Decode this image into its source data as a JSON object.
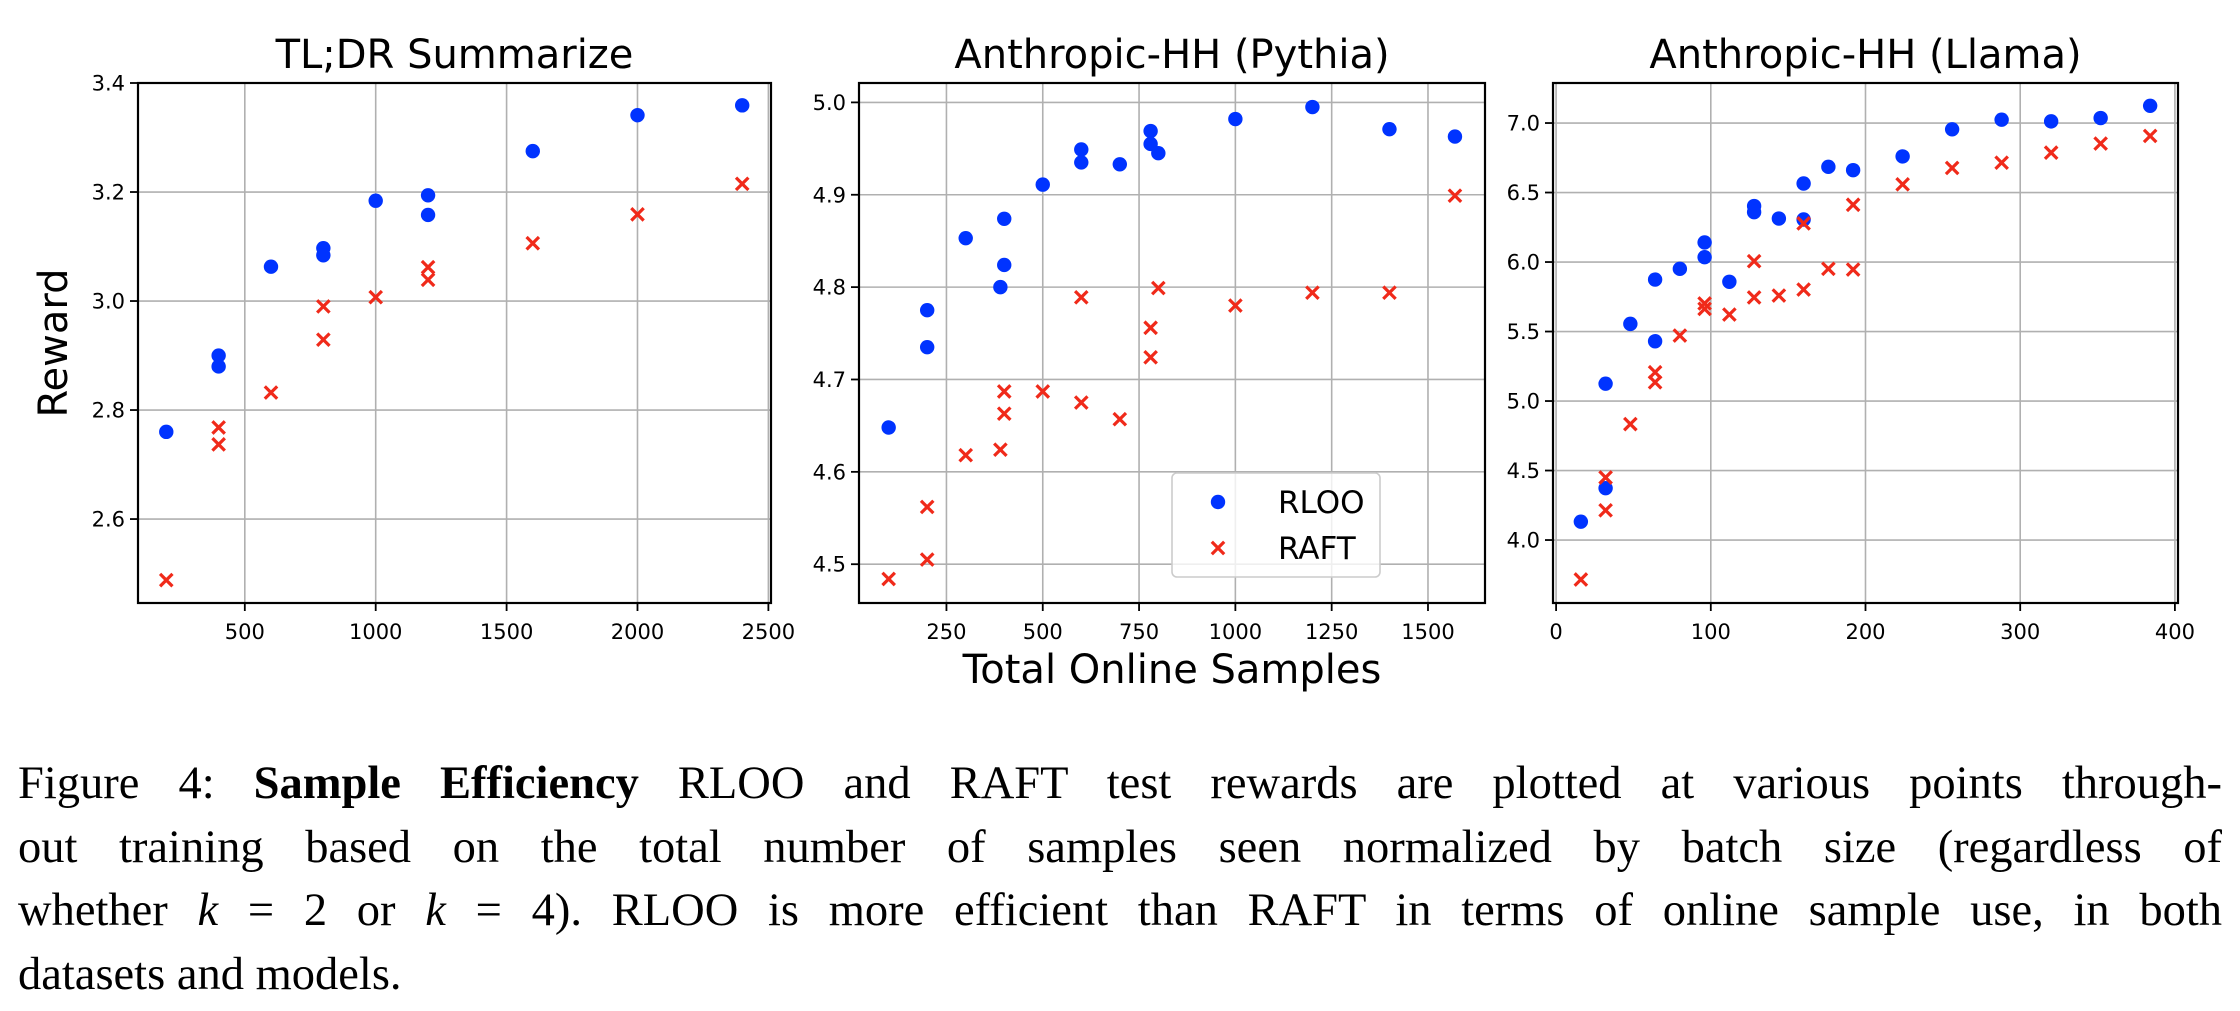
{
  "colors": {
    "rloo": "#0033ff",
    "raft": "#f02a1a",
    "grid": "#b0b0b0"
  },
  "chart_data": [
    {
      "type": "scatter",
      "title": "TL;DR Summarize",
      "xlabel": "",
      "ylabel": "Reward",
      "xlim": [
        92,
        2510
      ],
      "ylim": [
        2.446,
        3.4
      ],
      "xticks": [
        500,
        1000,
        1500,
        2000,
        2500
      ],
      "xtick_labels": [
        "500",
        "1000",
        "1500",
        "2000",
        "2500"
      ],
      "yticks": [
        2.6,
        2.8,
        3.0,
        3.2,
        3.4
      ],
      "ytick_labels": [
        "2.6",
        "2.8",
        "3.0",
        "3.2",
        "3.4"
      ],
      "grid": true,
      "legend": null,
      "series": [
        {
          "name": "RLOO",
          "marker": "circle",
          "x": [
            200,
            400,
            400,
            600,
            800,
            800,
            1000,
            1200,
            1200,
            1600,
            2000,
            2400
          ],
          "y": [
            2.76,
            2.9,
            2.88,
            3.063,
            3.097,
            3.084,
            3.184,
            3.194,
            3.158,
            3.275,
            3.341,
            3.359
          ]
        },
        {
          "name": "RAFT",
          "marker": "x",
          "x": [
            200,
            400,
            400,
            600,
            800,
            800,
            1000,
            1200,
            1200,
            1600,
            2000,
            2400
          ],
          "y": [
            2.488,
            2.768,
            2.737,
            2.832,
            2.99,
            2.929,
            3.007,
            3.062,
            3.039,
            3.106,
            3.159,
            3.215
          ]
        }
      ]
    },
    {
      "type": "scatter",
      "title": "Anthropic-HH (Pythia)",
      "xlabel": "Total Online Samples",
      "ylabel": "",
      "xlim": [
        23,
        1648
      ],
      "ylim": [
        4.458,
        5.021
      ],
      "xticks": [
        250,
        500,
        750,
        1000,
        1250,
        1500
      ],
      "xtick_labels": [
        "250",
        "500",
        "750",
        "1000",
        "1250",
        "1500"
      ],
      "yticks": [
        4.5,
        4.6,
        4.7,
        4.8,
        4.9,
        5.0
      ],
      "ytick_labels": [
        "4.5",
        "4.6",
        "4.7",
        "4.8",
        "4.9",
        "5.0"
      ],
      "grid": true,
      "legend": {
        "position": "lower-right",
        "entries": [
          "RLOO",
          "RAFT"
        ]
      },
      "series": [
        {
          "name": "RLOO",
          "marker": "circle",
          "x": [
            100,
            200,
            200,
            300,
            390,
            400,
            400,
            500,
            600,
            600,
            700,
            780,
            780,
            800,
            1000,
            1200,
            1400,
            1570
          ],
          "y": [
            4.648,
            4.775,
            4.735,
            4.853,
            4.8,
            4.874,
            4.824,
            4.911,
            4.949,
            4.935,
            4.933,
            4.969,
            4.955,
            4.945,
            4.982,
            4.995,
            4.971,
            4.963
          ]
        },
        {
          "name": "RAFT",
          "marker": "x",
          "x": [
            100,
            200,
            200,
            300,
            390,
            400,
            400,
            500,
            600,
            600,
            700,
            780,
            780,
            800,
            1000,
            1200,
            1400,
            1570
          ],
          "y": [
            4.484,
            4.562,
            4.505,
            4.618,
            4.624,
            4.687,
            4.663,
            4.687,
            4.789,
            4.675,
            4.657,
            4.756,
            4.724,
            4.799,
            4.78,
            4.794,
            4.794,
            4.899
          ]
        }
      ]
    },
    {
      "type": "scatter",
      "title": "Anthropic-HH (Llama)",
      "xlabel": "",
      "ylabel": "",
      "xlim": [
        -2,
        402
      ],
      "ylim": [
        3.547,
        7.288
      ],
      "xticks": [
        0,
        100,
        200,
        300,
        400
      ],
      "xtick_labels": [
        "0",
        "100",
        "200",
        "300",
        "400"
      ],
      "yticks": [
        4.0,
        4.5,
        5.0,
        5.5,
        6.0,
        6.5,
        7.0
      ],
      "ytick_labels": [
        "4.0",
        "4.5",
        "5.0",
        "5.5",
        "6.0",
        "6.5",
        "7.0"
      ],
      "grid": true,
      "legend": null,
      "series": [
        {
          "name": "RLOO",
          "marker": "circle",
          "x": [
            16,
            32,
            32,
            48,
            64,
            64,
            80,
            96,
            96,
            112,
            128,
            128,
            144,
            160,
            160,
            176,
            192,
            224,
            256,
            288,
            320,
            352,
            384
          ],
          "y": [
            4.132,
            5.125,
            4.373,
            5.555,
            5.874,
            5.43,
            5.951,
            6.141,
            6.035,
            5.858,
            6.403,
            6.359,
            6.313,
            6.565,
            6.306,
            6.685,
            6.661,
            6.76,
            6.955,
            7.024,
            7.012,
            7.036,
            7.124
          ]
        },
        {
          "name": "RAFT",
          "marker": "x",
          "x": [
            16,
            32,
            32,
            48,
            64,
            64,
            80,
            96,
            96,
            112,
            128,
            128,
            144,
            160,
            160,
            176,
            192,
            192,
            224,
            256,
            288,
            320,
            352,
            384
          ],
          "y": [
            3.716,
            4.45,
            4.214,
            4.834,
            5.207,
            5.135,
            5.471,
            5.702,
            5.663,
            5.622,
            6.006,
            5.745,
            5.759,
            5.802,
            6.278,
            5.951,
            5.946,
            6.412,
            6.559,
            6.677,
            6.715,
            6.787,
            6.852,
            6.907
          ]
        }
      ]
    }
  ],
  "caption": {
    "label": "Figure 4:",
    "bold_title": "Sample Efficiency",
    "lines": [
      "RLOO and RAFT test rewards are plotted at various points through-",
      "out training based on the total number of samples seen normalized by batch size (regardless of",
      "whether",
      "= 2 or",
      "= 4). RLOO is more efficient than RAFT in terms of online sample use, in both",
      "datasets and models."
    ],
    "math_var": "k"
  }
}
